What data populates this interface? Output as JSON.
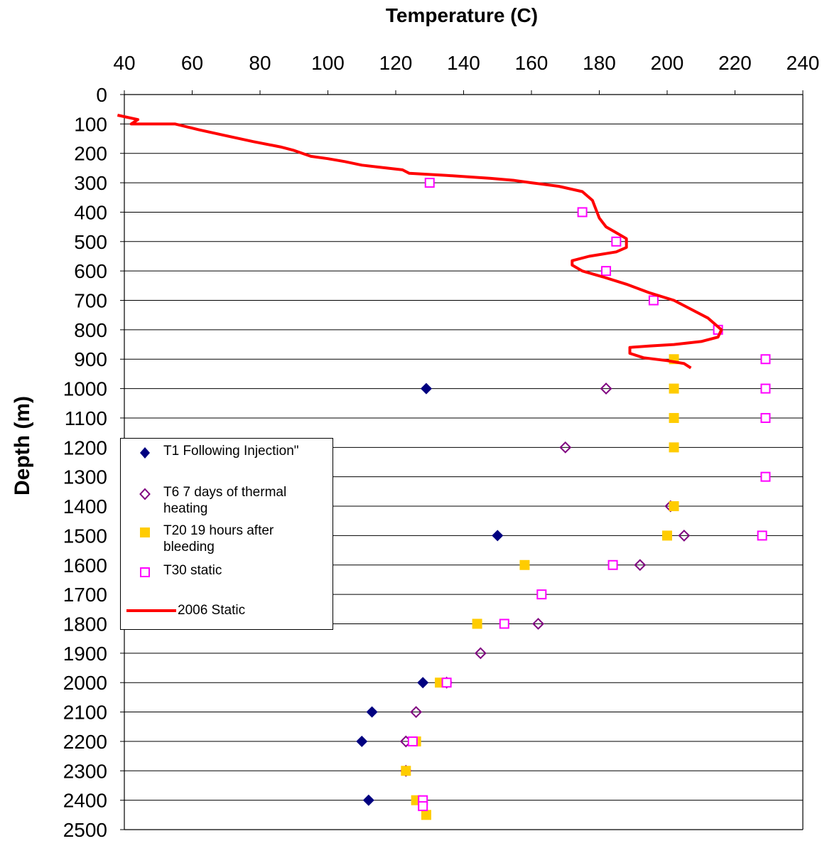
{
  "chart_data": {
    "type": "scatter",
    "title": "",
    "xlabel": "Temperature (C)",
    "ylabel": "Depth (m)",
    "xlim": [
      40,
      240
    ],
    "ylim": [
      0,
      2500
    ],
    "y_inverted": true,
    "x_axis_position": "top",
    "x_ticks": [
      "40",
      "60",
      "80",
      "100",
      "120",
      "140",
      "160",
      "180",
      "200",
      "220",
      "240"
    ],
    "y_ticks": [
      "0",
      "100",
      "200",
      "300",
      "400",
      "500",
      "600",
      "700",
      "800",
      "900",
      "1000",
      "1100",
      "1200",
      "1300",
      "1400",
      "1500",
      "1600",
      "1700",
      "1800",
      "1900",
      "2000",
      "2100",
      "2200",
      "2300",
      "2400",
      "2500"
    ],
    "grid": "horizontal",
    "legend_position": "left-middle",
    "series": [
      {
        "name": "T1 Following Injection\"",
        "marker": "diamond-filled",
        "color": "#000080",
        "points": [
          [
            129,
            1000
          ],
          [
            150,
            1500
          ],
          [
            128,
            2000
          ],
          [
            113,
            2100
          ],
          [
            110,
            2200
          ],
          [
            112,
            2400
          ]
        ]
      },
      {
        "name": "T6  7 days of thermal heating",
        "marker": "diamond-open",
        "color": "#800080",
        "points": [
          [
            182,
            1000
          ],
          [
            170,
            1200
          ],
          [
            201,
            1400
          ],
          [
            205,
            1500
          ],
          [
            192,
            1600
          ],
          [
            162,
            1800
          ],
          [
            145,
            1900
          ],
          [
            135,
            2000
          ],
          [
            126,
            2100
          ],
          [
            123,
            2200
          ],
          [
            123,
            2300
          ]
        ]
      },
      {
        "name": "T20  19 hours after bleeding",
        "marker": "square-filled",
        "color": "#FFCC00",
        "points": [
          [
            202,
            900
          ],
          [
            202,
            1000
          ],
          [
            202,
            1100
          ],
          [
            202,
            1200
          ],
          [
            202,
            1400
          ],
          [
            200,
            1500
          ],
          [
            158,
            1600
          ],
          [
            144,
            1800
          ],
          [
            133,
            2000
          ],
          [
            126,
            2200
          ],
          [
            123,
            2300
          ],
          [
            126,
            2400
          ],
          [
            129,
            2450
          ]
        ]
      },
      {
        "name": "T30 static",
        "marker": "square-open",
        "color": "#FF00FF",
        "points": [
          [
            130,
            300
          ],
          [
            175,
            400
          ],
          [
            185,
            500
          ],
          [
            182,
            600
          ],
          [
            196,
            700
          ],
          [
            215,
            800
          ],
          [
            229,
            900
          ],
          [
            229,
            1000
          ],
          [
            229,
            1100
          ],
          [
            229,
            1300
          ],
          [
            228,
            1500
          ],
          [
            184,
            1600
          ],
          [
            163,
            1700
          ],
          [
            152,
            1800
          ],
          [
            135,
            2000
          ],
          [
            125,
            2200
          ],
          [
            128,
            2400
          ],
          [
            128,
            2420
          ]
        ]
      },
      {
        "name": "2006 Static",
        "marker": "line",
        "color": "#FF0000",
        "points": [
          [
            38,
            70
          ],
          [
            44,
            85
          ],
          [
            42,
            100
          ],
          [
            55,
            100
          ],
          [
            62,
            120
          ],
          [
            70,
            140
          ],
          [
            78,
            160
          ],
          [
            86,
            178
          ],
          [
            90,
            190
          ],
          [
            95,
            210
          ],
          [
            100,
            218
          ],
          [
            105,
            228
          ],
          [
            110,
            240
          ],
          [
            116,
            248
          ],
          [
            122,
            256
          ],
          [
            124,
            268
          ],
          [
            135,
            275
          ],
          [
            148,
            285
          ],
          [
            155,
            292
          ],
          [
            160,
            300
          ],
          [
            168,
            312
          ],
          [
            175,
            330
          ],
          [
            178,
            360
          ],
          [
            179,
            390
          ],
          [
            180,
            420
          ],
          [
            182,
            450
          ],
          [
            185,
            470
          ],
          [
            188,
            490
          ],
          [
            188,
            520
          ],
          [
            185,
            535
          ],
          [
            177,
            550
          ],
          [
            172,
            565
          ],
          [
            172,
            580
          ],
          [
            175,
            600
          ],
          [
            181,
            620
          ],
          [
            188,
            645
          ],
          [
            195,
            675
          ],
          [
            202,
            700
          ],
          [
            207,
            730
          ],
          [
            212,
            760
          ],
          [
            216,
            800
          ],
          [
            215,
            825
          ],
          [
            210,
            840
          ],
          [
            202,
            850
          ],
          [
            195,
            855
          ],
          [
            189,
            860
          ],
          [
            189,
            880
          ],
          [
            193,
            895
          ],
          [
            200,
            905
          ],
          [
            205,
            915
          ],
          [
            207,
            930
          ]
        ]
      }
    ]
  },
  "legend": {
    "items": [
      {
        "label": "T1 Following Injection\""
      },
      {
        "label": "T6  7 days of thermal heating"
      },
      {
        "label": "T20  19 hours after bleeding"
      },
      {
        "label": "T30 static"
      },
      {
        "label": "2006 Static"
      }
    ]
  }
}
